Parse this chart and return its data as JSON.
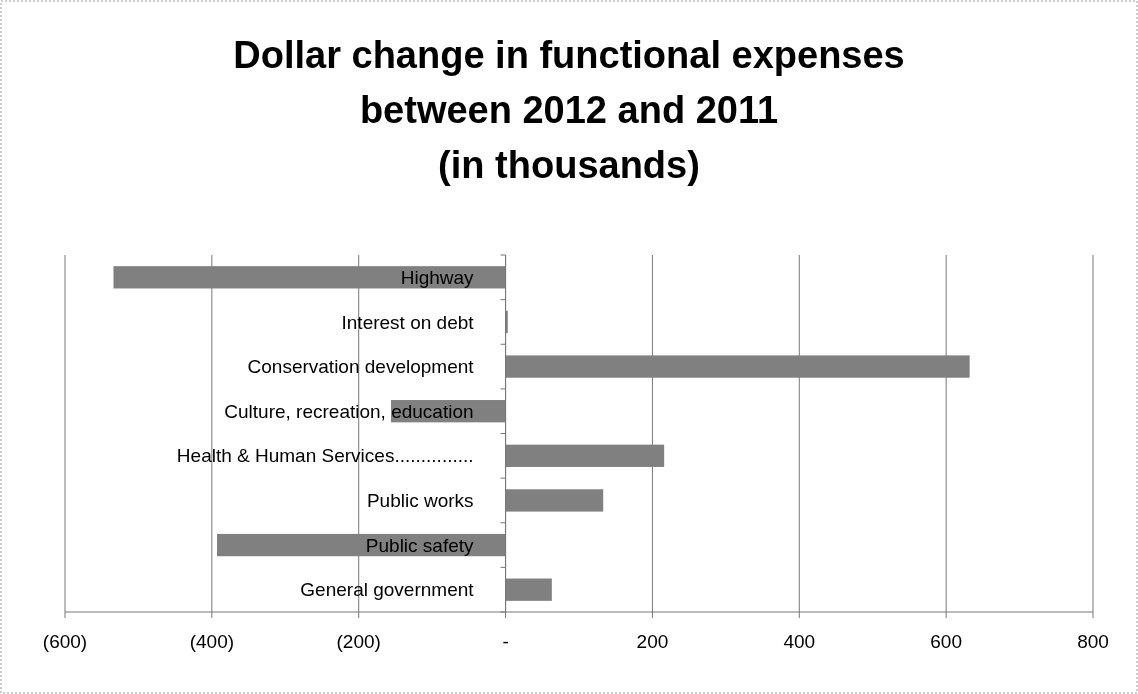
{
  "chart_data": {
    "type": "bar",
    "orientation": "horizontal",
    "title": "Dollar change in functional expenses\nbetween 2012 and 2011\n(in thousands)",
    "categories": [
      "Highway",
      "Interest on debt",
      "Conservation development",
      "Culture, recreation, education",
      "Health & Human Services...............",
      "Public works",
      "Public safety",
      "General government"
    ],
    "values": [
      -534,
      3,
      632,
      -156,
      216,
      133,
      -393,
      63
    ],
    "color": "#808080",
    "xlim": [
      -600,
      800
    ],
    "xticks": [
      {
        "value": -600,
        "label": "(600)"
      },
      {
        "value": -400,
        "label": "(400)"
      },
      {
        "value": -200,
        "label": "(200)"
      },
      {
        "value": 0,
        "label": "-"
      },
      200,
      400,
      600,
      800
    ],
    "grid": "x"
  }
}
